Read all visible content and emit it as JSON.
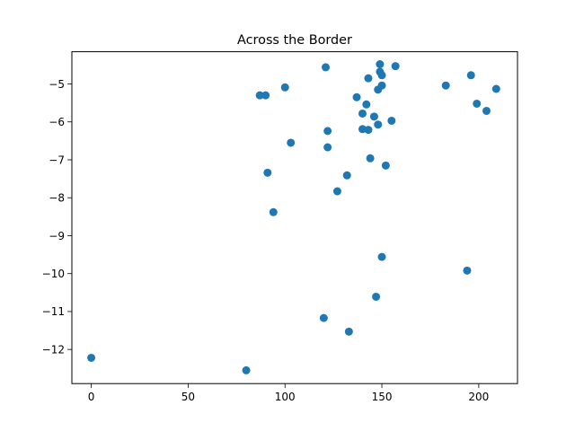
{
  "chart_data": {
    "type": "scatter",
    "title": "Across the Border",
    "xlabel": "",
    "ylabel": "",
    "xlim": [
      -10,
      220
    ],
    "ylim": [
      -12.9,
      -4.15
    ],
    "xticks": [
      0,
      50,
      100,
      150,
      200
    ],
    "yticks": [
      -12,
      -11,
      -10,
      -9,
      -8,
      -7,
      -6,
      -5
    ],
    "grid": false,
    "marker_color": "#1f77b4",
    "points": [
      {
        "x": 0,
        "y": -12.22
      },
      {
        "x": 80,
        "y": -12.55
      },
      {
        "x": 87,
        "y": -5.3
      },
      {
        "x": 90,
        "y": -5.3
      },
      {
        "x": 91,
        "y": -7.34
      },
      {
        "x": 94,
        "y": -8.38
      },
      {
        "x": 100,
        "y": -5.09
      },
      {
        "x": 103,
        "y": -6.55
      },
      {
        "x": 120,
        "y": -11.17
      },
      {
        "x": 121,
        "y": -4.56
      },
      {
        "x": 122,
        "y": -6.24
      },
      {
        "x": 122,
        "y": -6.67
      },
      {
        "x": 127,
        "y": -7.83
      },
      {
        "x": 132,
        "y": -7.41
      },
      {
        "x": 133,
        "y": -11.53
      },
      {
        "x": 137,
        "y": -5.35
      },
      {
        "x": 140,
        "y": -5.78
      },
      {
        "x": 140,
        "y": -6.19
      },
      {
        "x": 142,
        "y": -5.54
      },
      {
        "x": 143,
        "y": -6.21
      },
      {
        "x": 143,
        "y": -4.85
      },
      {
        "x": 144,
        "y": -6.96
      },
      {
        "x": 146,
        "y": -5.86
      },
      {
        "x": 147,
        "y": -10.61
      },
      {
        "x": 148,
        "y": -5.15
      },
      {
        "x": 148,
        "y": -6.07
      },
      {
        "x": 149,
        "y": -4.48
      },
      {
        "x": 149,
        "y": -4.68
      },
      {
        "x": 150,
        "y": -4.77
      },
      {
        "x": 150,
        "y": -5.04
      },
      {
        "x": 150,
        "y": -9.56
      },
      {
        "x": 152,
        "y": -7.15
      },
      {
        "x": 155,
        "y": -5.97
      },
      {
        "x": 157,
        "y": -4.53
      },
      {
        "x": 183,
        "y": -5.04
      },
      {
        "x": 194,
        "y": -9.92
      },
      {
        "x": 196,
        "y": -4.77
      },
      {
        "x": 199,
        "y": -5.52
      },
      {
        "x": 204,
        "y": -5.71
      },
      {
        "x": 209,
        "y": -5.13
      }
    ]
  }
}
